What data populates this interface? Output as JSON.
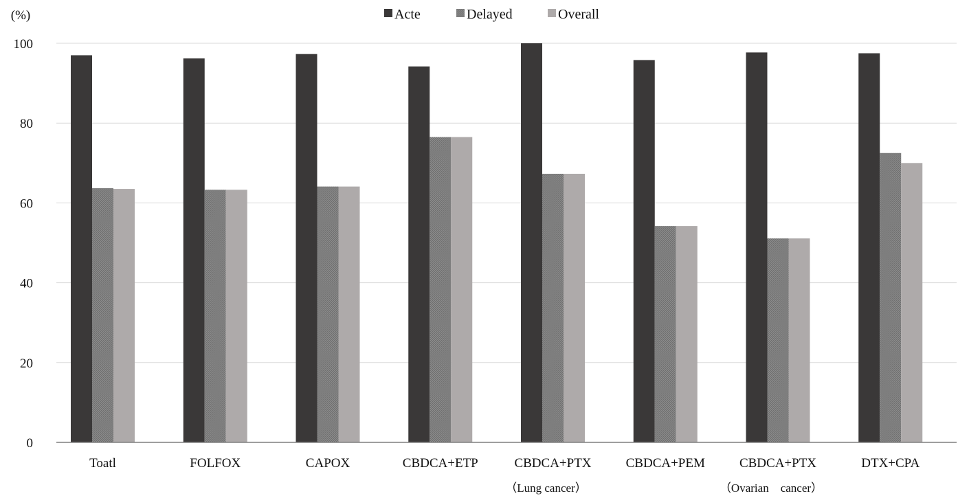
{
  "chart_data": {
    "type": "bar",
    "ylabel": "(%)",
    "ylim": [
      0,
      100
    ],
    "yticks": [
      0,
      20,
      40,
      60,
      80,
      100
    ],
    "grid": true,
    "legend_position": "top-center",
    "categories": [
      {
        "label": "Toatl",
        "sublabel": ""
      },
      {
        "label": "FOLFOX",
        "sublabel": ""
      },
      {
        "label": "CAPOX",
        "sublabel": ""
      },
      {
        "label": "CBDCA+ETP",
        "sublabel": ""
      },
      {
        "label": "CBDCA+PTX",
        "sublabel": "（Lung cancer）"
      },
      {
        "label": "CBDCA+PEM",
        "sublabel": ""
      },
      {
        "label": "CBDCA+PTX",
        "sublabel": "（Ovarian　cancer）"
      },
      {
        "label": "DTX+CPA",
        "sublabel": ""
      }
    ],
    "series": [
      {
        "name": "Acte",
        "color": "#3a3838",
        "pattern": "solid",
        "values": [
          97.0,
          96.2,
          97.3,
          94.2,
          100.0,
          95.8,
          97.7,
          97.5
        ]
      },
      {
        "name": "Delayed",
        "color": "#7f7f7f",
        "pattern": "hatched",
        "values": [
          63.7,
          63.3,
          64.1,
          76.5,
          67.3,
          54.2,
          51.1,
          72.5
        ]
      },
      {
        "name": "Overall",
        "color": "#aeaaaa",
        "pattern": "solid",
        "values": [
          63.5,
          63.3,
          64.1,
          76.5,
          67.3,
          54.2,
          51.1,
          70.0
        ]
      }
    ]
  }
}
